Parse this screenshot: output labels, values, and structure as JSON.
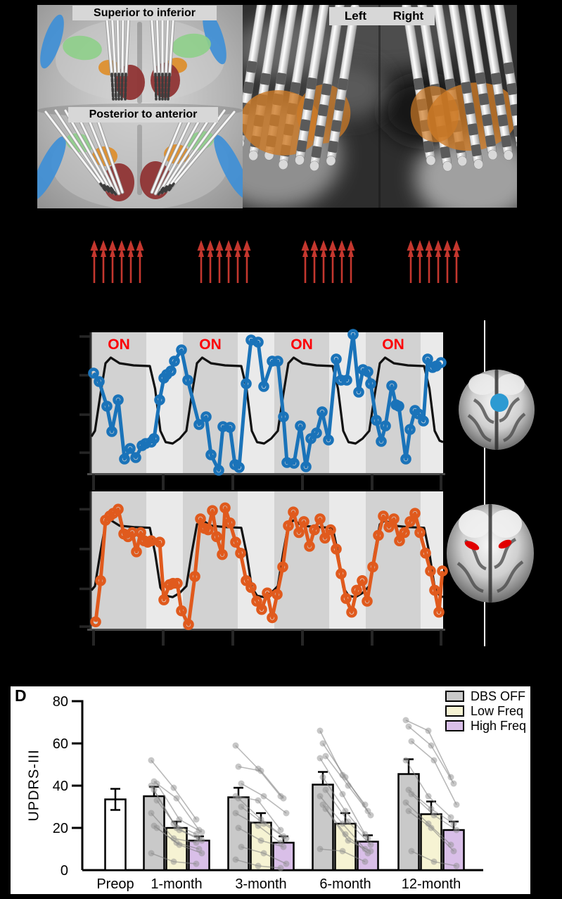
{
  "panel_a": {
    "view_labels": [
      "Superior to inferior",
      "Posterior to anterior"
    ],
    "structure_colors": {
      "blue": "#3f8fd6",
      "green": "#8ecf8a",
      "orange": "#dd8f2e",
      "red": "#8f3434"
    }
  },
  "panel_b": {
    "labels": {
      "left": "Left",
      "right": "Right"
    },
    "stn_color": "#cd7b27"
  },
  "stimulus_arrows": {
    "group_count": 4,
    "arrows_per_group": 6,
    "color": "#c4372e",
    "group_x": [
      130,
      282,
      430,
      580
    ]
  },
  "panel_c": {
    "on_label": "ON",
    "on_color": "#fb0006",
    "band_dark": "#d2d2d2",
    "band_light": "#eaeaea",
    "inset_top_marker_color": "#2d9ad2",
    "inset_bottom_marker_color": "#e10000"
  },
  "chart_data": [
    {
      "type": "line",
      "id": "bold-timeseries-blue",
      "series_color": "#1a73b9",
      "model_color": "#111111",
      "show_on_labels": true,
      "on_intervals_pct": [
        [
          0,
          15.6
        ],
        [
          26,
          41.6
        ],
        [
          52,
          67.6
        ],
        [
          78,
          93.6
        ]
      ],
      "left_ticks_pct": [
        97,
        69.5,
        41.5,
        14.5
      ],
      "bottom_ticks_pct": [
        0.6,
        20.4,
        40.2,
        60,
        79.8,
        99.4
      ],
      "points": [
        [
          0.6,
          71
        ],
        [
          2.2,
          65
        ],
        [
          4.4,
          47.5
        ],
        [
          5.8,
          29.5
        ],
        [
          7.6,
          52
        ],
        [
          9.4,
          10
        ],
        [
          11,
          17.5
        ],
        [
          12.6,
          11
        ],
        [
          14.4,
          19.5
        ],
        [
          15.4,
          21
        ],
        [
          17,
          22
        ],
        [
          17.8,
          24.5
        ],
        [
          19.4,
          52
        ],
        [
          20.6,
          67.5
        ],
        [
          21.4,
          70
        ],
        [
          22.6,
          72.5
        ],
        [
          23.6,
          79.5
        ],
        [
          25.6,
          87.5
        ],
        [
          27.4,
          66
        ],
        [
          30.6,
          34.5
        ],
        [
          32.6,
          40
        ],
        [
          34,
          13
        ],
        [
          36.2,
          2
        ],
        [
          37.4,
          33
        ],
        [
          39.4,
          32.5
        ],
        [
          40.8,
          6
        ],
        [
          42,
          4
        ],
        [
          44,
          63.5
        ],
        [
          45.4,
          94.5
        ],
        [
          47.4,
          93
        ],
        [
          49,
          61.5
        ],
        [
          51.4,
          79.5
        ],
        [
          53,
          79.5
        ],
        [
          54.6,
          40
        ],
        [
          55.6,
          7.5
        ],
        [
          57.6,
          7
        ],
        [
          59.4,
          33.5
        ],
        [
          61,
          4.5
        ],
        [
          62.4,
          24.5
        ],
        [
          64,
          28.5
        ],
        [
          65.6,
          43.5
        ],
        [
          67.4,
          23.5
        ],
        [
          69.6,
          81
        ],
        [
          71,
          66
        ],
        [
          72.6,
          66
        ],
        [
          74.4,
          98.5
        ],
        [
          76,
          57.5
        ],
        [
          77.2,
          73.5
        ],
        [
          78.6,
          72
        ],
        [
          79.4,
          63.5
        ],
        [
          81,
          37.5
        ],
        [
          82.4,
          22.5
        ],
        [
          83.6,
          33.5
        ],
        [
          85.4,
          62
        ],
        [
          86.6,
          48.5
        ],
        [
          87.4,
          47.5
        ],
        [
          89.4,
          10
        ],
        [
          90.6,
          31
        ],
        [
          92,
          44.5
        ],
        [
          93,
          42
        ],
        [
          94.4,
          37
        ],
        [
          95.6,
          81
        ],
        [
          97,
          75
        ],
        [
          98,
          76
        ],
        [
          99.4,
          78.5
        ]
      ],
      "model": [
        [
          0,
          26
        ],
        [
          1,
          30
        ],
        [
          2.5,
          55
        ],
        [
          4,
          78
        ],
        [
          5.5,
          82
        ],
        [
          8,
          78
        ],
        [
          12,
          76.5
        ],
        [
          16.6,
          76
        ],
        [
          18.1,
          60
        ],
        [
          19.6,
          30
        ],
        [
          21.1,
          22
        ],
        [
          23.1,
          21
        ],
        [
          25.1,
          24.5
        ],
        [
          27,
          30
        ],
        [
          28.5,
          55
        ],
        [
          30,
          78
        ],
        [
          31.5,
          82
        ],
        [
          34,
          78
        ],
        [
          38,
          76.5
        ],
        [
          42.6,
          76
        ],
        [
          44.1,
          60
        ],
        [
          45.6,
          30
        ],
        [
          47.1,
          22
        ],
        [
          49.1,
          21
        ],
        [
          51.1,
          24.5
        ],
        [
          53,
          30
        ],
        [
          54.5,
          55
        ],
        [
          56,
          78
        ],
        [
          57.5,
          82
        ],
        [
          60,
          78
        ],
        [
          64,
          76.5
        ],
        [
          68.6,
          76
        ],
        [
          70.1,
          60
        ],
        [
          71.6,
          30
        ],
        [
          73.1,
          22
        ],
        [
          75.1,
          21
        ],
        [
          77.1,
          24.5
        ],
        [
          79,
          30
        ],
        [
          80.5,
          55
        ],
        [
          82,
          78
        ],
        [
          83.5,
          82
        ],
        [
          86,
          78
        ],
        [
          90,
          76.5
        ],
        [
          94.6,
          76
        ],
        [
          96.1,
          60
        ],
        [
          97.6,
          30
        ],
        [
          99,
          23
        ],
        [
          100,
          22
        ]
      ]
    },
    {
      "type": "line",
      "id": "bold-timeseries-orange",
      "series_color": "#e05a1d",
      "model_color": "#111111",
      "show_on_labels": false,
      "on_intervals_pct": [
        [
          0,
          15.6
        ],
        [
          26,
          41.6
        ],
        [
          52,
          67.6
        ],
        [
          78,
          93.6
        ]
      ],
      "left_ticks_pct": [
        87,
        58,
        29,
        1.5
      ],
      "bottom_ticks_pct": [
        0.6,
        20.4,
        40.2,
        60,
        79.8,
        99.4
      ],
      "points": [
        [
          1.2,
          5
        ],
        [
          2.6,
          35
        ],
        [
          4,
          79
        ],
        [
          5.2,
          82
        ],
        [
          6.2,
          84
        ],
        [
          7.6,
          87
        ],
        [
          9.2,
          69
        ],
        [
          10.4,
          67
        ],
        [
          11.6,
          70
        ],
        [
          12.8,
          56
        ],
        [
          14,
          70
        ],
        [
          15,
          64
        ],
        [
          16,
          63
        ],
        [
          17,
          64
        ],
        [
          19.4,
          63
        ],
        [
          20.6,
          21
        ],
        [
          22.2,
          32
        ],
        [
          23.2,
          33
        ],
        [
          24.4,
          33
        ],
        [
          25.6,
          13
        ],
        [
          27.6,
          3
        ],
        [
          29.4,
          38
        ],
        [
          31,
          80
        ],
        [
          32.2,
          73
        ],
        [
          33.2,
          72
        ],
        [
          34.4,
          86
        ],
        [
          35.6,
          67
        ],
        [
          37.2,
          54
        ],
        [
          38,
          88
        ],
        [
          39.4,
          77
        ],
        [
          41,
          63
        ],
        [
          42.4,
          55
        ],
        [
          44,
          35
        ],
        [
          45.4,
          30
        ],
        [
          47,
          20
        ],
        [
          48.4,
          14
        ],
        [
          50,
          26
        ],
        [
          51.4,
          8
        ],
        [
          52.8,
          25
        ],
        [
          54.4,
          45
        ],
        [
          56,
          75
        ],
        [
          57.4,
          85
        ],
        [
          59,
          70
        ],
        [
          60.4,
          78
        ],
        [
          62,
          60
        ],
        [
          63.4,
          72
        ],
        [
          65,
          80
        ],
        [
          66.4,
          66
        ],
        [
          68,
          72
        ],
        [
          69.6,
          58
        ],
        [
          71,
          40
        ],
        [
          72.4,
          22
        ],
        [
          74,
          12
        ],
        [
          75.4,
          28
        ],
        [
          77,
          35
        ],
        [
          78.4,
          20
        ],
        [
          80,
          45
        ],
        [
          81.6,
          68
        ],
        [
          83,
          82
        ],
        [
          84.6,
          74
        ],
        [
          86,
          80
        ],
        [
          87.6,
          64
        ],
        [
          89,
          70
        ],
        [
          90.6,
          78
        ],
        [
          92,
          84
        ],
        [
          93.4,
          70
        ],
        [
          95,
          55
        ],
        [
          96.4,
          42
        ],
        [
          97.6,
          28
        ],
        [
          98.8,
          12
        ],
        [
          99.8,
          42
        ]
      ],
      "model": [
        [
          0,
          28
        ],
        [
          1,
          31
        ],
        [
          2.5,
          55
        ],
        [
          4,
          76
        ],
        [
          5.5,
          79
        ],
        [
          8,
          75
        ],
        [
          12,
          74
        ],
        [
          16.6,
          73.5
        ],
        [
          18.1,
          55
        ],
        [
          19.6,
          30
        ],
        [
          21.1,
          24
        ],
        [
          23.1,
          23
        ],
        [
          25.1,
          26
        ],
        [
          27,
          31
        ],
        [
          28.5,
          55
        ],
        [
          30,
          76
        ],
        [
          31.5,
          79
        ],
        [
          34,
          75
        ],
        [
          38,
          74
        ],
        [
          42.6,
          73.5
        ],
        [
          44.1,
          55
        ],
        [
          45.6,
          30
        ],
        [
          47.1,
          24
        ],
        [
          49.1,
          23
        ],
        [
          51.1,
          26
        ],
        [
          53,
          31
        ],
        [
          54.5,
          55
        ],
        [
          56,
          76
        ],
        [
          57.5,
          79
        ],
        [
          60,
          75
        ],
        [
          64,
          74
        ],
        [
          68.6,
          73.5
        ],
        [
          70.1,
          55
        ],
        [
          71.6,
          30
        ],
        [
          73.1,
          24
        ],
        [
          75.1,
          23
        ],
        [
          77.1,
          26
        ],
        [
          79,
          31
        ],
        [
          80.5,
          55
        ],
        [
          82,
          76
        ],
        [
          83.5,
          79
        ],
        [
          86,
          75
        ],
        [
          90,
          74
        ],
        [
          94.6,
          73.5
        ],
        [
          96.1,
          55
        ],
        [
          97.6,
          30
        ],
        [
          99,
          24
        ],
        [
          100,
          23
        ]
      ]
    },
    {
      "type": "bar",
      "panel_label": "D",
      "ylabel": "UPDRS-III",
      "ylim": [
        0,
        80
      ],
      "yticks": [
        0,
        20,
        40,
        60,
        80
      ],
      "categories": [
        "Preop",
        "1-month",
        "3-month",
        "6-month",
        "12-month"
      ],
      "legend": [
        {
          "label": "DBS OFF",
          "color": "#c9c9c9"
        },
        {
          "label": "Low Freq",
          "color": "#f6f3d3"
        },
        {
          "label": "High Freq",
          "color": "#d9bfe8"
        }
      ],
      "preop": {
        "mean": 33.5,
        "err": 5,
        "color": "#ffffff"
      },
      "series_categories": [
        "1-month",
        "3-month",
        "6-month",
        "12-month"
      ],
      "series": [
        {
          "name": "DBS OFF",
          "color": "#c9c9c9",
          "means": [
            35,
            34.5,
            40.5,
            45.5
          ],
          "errors": [
            4.5,
            4.5,
            6,
            7
          ]
        },
        {
          "name": "Low Freq",
          "color": "#f6f3d3",
          "means": [
            20,
            22.5,
            22,
            26.5
          ],
          "errors": [
            3,
            4.5,
            5,
            6
          ]
        },
        {
          "name": "High Freq",
          "color": "#d9bfe8",
          "means": [
            14,
            13,
            13.5,
            19
          ],
          "errors": [
            2,
            3,
            3,
            4
          ]
        }
      ],
      "subjects": {
        "1-month": [
          [
            52,
            39,
            24
          ],
          [
            42,
            34,
            19
          ],
          [
            41,
            24,
            18
          ],
          [
            40,
            22,
            17
          ],
          [
            38,
            20,
            15
          ],
          [
            33,
            19,
            14
          ],
          [
            27,
            15,
            13
          ],
          [
            21,
            13,
            10
          ],
          [
            20,
            12,
            8
          ],
          [
            8,
            4,
            3
          ]
        ],
        "3-month": [
          [
            59,
            48,
            35
          ],
          [
            49,
            47,
            34
          ],
          [
            41,
            35,
            27
          ],
          [
            35,
            33,
            19
          ],
          [
            34,
            24,
            16
          ],
          [
            30,
            22,
            15
          ],
          [
            27,
            21,
            13
          ],
          [
            20,
            14,
            11
          ],
          [
            11,
            8,
            3
          ],
          [
            5,
            2,
            1
          ]
        ],
        "6-month": [
          [
            66,
            45,
            31
          ],
          [
            60,
            44,
            28
          ],
          [
            54,
            40,
            26
          ],
          [
            53,
            36,
            17
          ],
          [
            44,
            28,
            15
          ],
          [
            38,
            23,
            12
          ],
          [
            35,
            22,
            10
          ],
          [
            31,
            17,
            8
          ],
          [
            29,
            14,
            9
          ],
          [
            10,
            9,
            4
          ]
        ],
        "12-month": [
          [
            71,
            66,
            44
          ],
          [
            68,
            59,
            41
          ],
          [
            61,
            52,
            31
          ],
          [
            52,
            35,
            25
          ],
          [
            38,
            29,
            22
          ],
          [
            36,
            26,
            19
          ],
          [
            32,
            22,
            12
          ],
          [
            28,
            20,
            9
          ],
          [
            9,
            4,
            2
          ]
        ]
      }
    }
  ]
}
